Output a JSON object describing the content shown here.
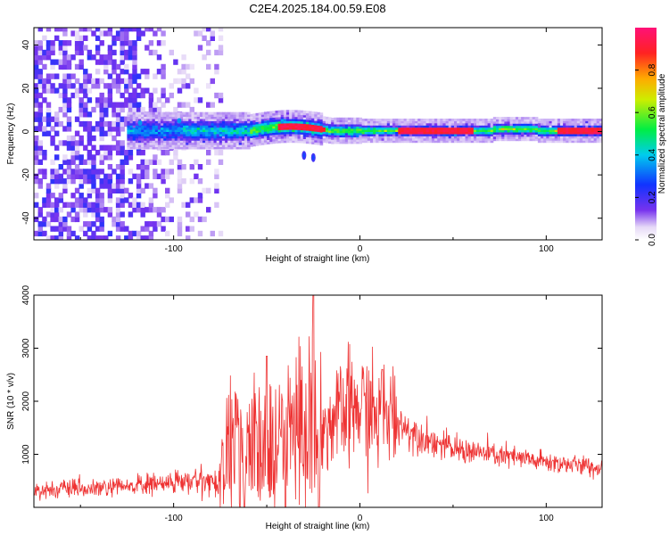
{
  "chart_data": [
    {
      "type": "heatmap",
      "title": "C2E4.2025.184.00.59.E08",
      "xlabel": "Height of straight line (km)",
      "ylabel": "Frequency (Hz)",
      "xlim": [
        -175,
        130
      ],
      "ylim": [
        -50,
        48
      ],
      "x_ticks": [
        -100,
        0,
        100
      ],
      "x_tick_labels": [
        "-100",
        "0",
        "100"
      ],
      "y_ticks": [
        -40,
        -20,
        0,
        20,
        40
      ],
      "y_tick_labels": [
        "-40",
        "-20",
        "0",
        "20",
        "40"
      ],
      "colorbar": {
        "label": "Normalized spectral amplitude",
        "range": [
          0,
          1
        ],
        "ticks": [
          0.0,
          0.2,
          0.4,
          0.6,
          0.8
        ],
        "tick_labels": [
          "0.0",
          "0.2",
          "0.4",
          "0.6",
          "0.8"
        ],
        "colormap": "rainbow (purple → blue → cyan → green → yellow → orange → red → magenta)"
      },
      "features": {
        "noise_region_x": [
          -175,
          -75
        ],
        "carrier_frequency_hz": 0,
        "strongest_segments_x": [
          [
            -45,
            -20
          ],
          [
            20,
            60
          ],
          [
            105,
            130
          ]
        ],
        "side_blobs": [
          {
            "x": -30,
            "y": -11
          },
          {
            "x": -25,
            "y": -12
          }
        ]
      }
    },
    {
      "type": "line",
      "title": "",
      "xlabel": "Height of straight line (km)",
      "ylabel": "SNR (10 * v/v)",
      "xlim": [
        -175,
        130
      ],
      "ylim": [
        0,
        4000
      ],
      "x_ticks": [
        -100,
        0,
        100
      ],
      "x_tick_labels": [
        "-100",
        "0",
        "100"
      ],
      "y_ticks": [
        1000,
        2000,
        3000,
        4000
      ],
      "y_tick_labels": [
        "1000",
        "2000",
        "3000",
        "4000"
      ],
      "grid": false,
      "series": [
        {
          "color": "#ee3333",
          "x": [
            -175,
            -165,
            -155,
            -145,
            -135,
            -125,
            -120,
            -115,
            -110,
            -105,
            -100,
            -95,
            -90,
            -85,
            -80,
            -76,
            -72,
            -68,
            -64,
            -60,
            -56,
            -52,
            -48,
            -44,
            -40,
            -36,
            -32,
            -28,
            -25,
            -22,
            -18,
            -14,
            -10,
            -6,
            -2,
            2,
            6,
            10,
            14,
            18,
            24,
            30,
            36,
            42,
            50,
            60,
            70,
            80,
            90,
            100,
            110,
            120,
            130
          ],
          "y": [
            320,
            330,
            350,
            330,
            370,
            380,
            430,
            400,
            470,
            420,
            500,
            470,
            480,
            520,
            500,
            460,
            1050,
            1200,
            1250,
            1450,
            1300,
            1150,
            1200,
            1100,
            1500,
            1450,
            1550,
            1750,
            1800,
            1300,
            1550,
            1600,
            1700,
            1850,
            1850,
            1900,
            1800,
            1650,
            1750,
            1750,
            1500,
            1400,
            1300,
            1200,
            1100,
            1050,
            1000,
            950,
            900,
            850,
            820,
            780,
            720
          ],
          "peaks": [
            {
              "x": -25,
              "y": 4000
            },
            {
              "x": -50,
              "y": 2850
            },
            {
              "x": -40,
              "y": 2750
            },
            {
              "x": 12,
              "y": 2600
            }
          ],
          "dips": [
            {
              "x": -22,
              "y": 0
            },
            {
              "x": -62,
              "y": 0
            },
            {
              "x": -40,
              "y": 0
            }
          ]
        }
      ]
    }
  ]
}
